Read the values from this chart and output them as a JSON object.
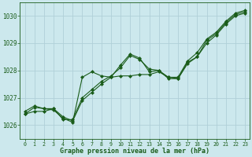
{
  "xlabel": "Graphe pression niveau de la mer (hPa)",
  "ylabel": "",
  "background_color": "#cce8ed",
  "grid_color": "#b0d0d8",
  "line_color": "#1a5c1a",
  "marker": "D",
  "markersize": 2.0,
  "linewidth": 0.8,
  "ylim": [
    1025.5,
    1030.5
  ],
  "xlim": [
    -0.5,
    23.5
  ],
  "yticks": [
    1026,
    1027,
    1028,
    1029,
    1030
  ],
  "xticks": [
    0,
    1,
    2,
    3,
    4,
    5,
    6,
    7,
    8,
    9,
    10,
    11,
    12,
    13,
    14,
    15,
    16,
    17,
    18,
    19,
    20,
    21,
    22,
    23
  ],
  "series": [
    [
      1026.5,
      1026.7,
      1026.6,
      1026.6,
      1026.2,
      1026.2,
      1027.0,
      1027.3,
      1027.6,
      1027.8,
      1028.1,
      1028.55,
      1028.4,
      1028.05,
      1028.0,
      1027.75,
      1027.75,
      1028.35,
      1028.65,
      1029.15,
      1029.4,
      1029.8,
      1030.1,
      1030.2
    ],
    [
      1026.4,
      1026.65,
      1026.6,
      1026.55,
      1026.25,
      1026.1,
      1027.75,
      1027.95,
      1027.8,
      1027.75,
      1028.2,
      1028.6,
      1028.45,
      1027.95,
      1028.0,
      1027.7,
      1027.7,
      1028.3,
      1028.5,
      1029.1,
      1029.35,
      1029.75,
      1030.05,
      1030.15
    ],
    [
      1026.4,
      1026.5,
      1026.5,
      1026.6,
      1026.3,
      1026.15,
      1026.9,
      1027.2,
      1027.5,
      1027.75,
      1027.8,
      1027.8,
      1027.85,
      1027.85,
      1027.95,
      1027.75,
      1027.7,
      1028.25,
      1028.5,
      1029.0,
      1029.3,
      1029.7,
      1030.0,
      1030.1
    ]
  ]
}
